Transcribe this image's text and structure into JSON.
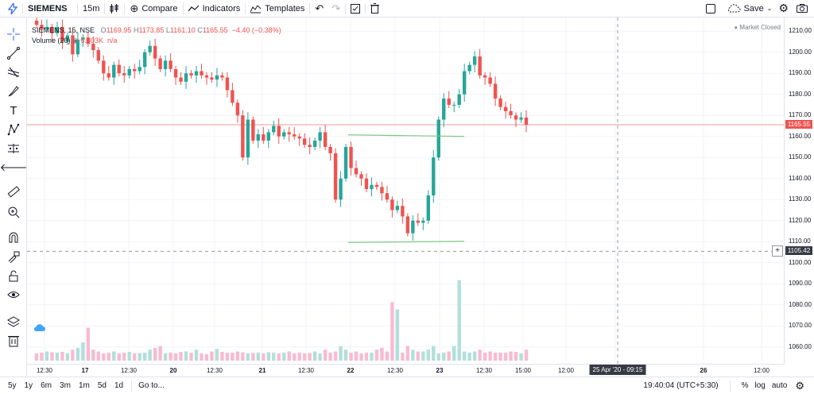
{
  "toolbar": {
    "symbol": "SIEMENS",
    "interval": "15m",
    "compare_label": "Compare",
    "indicators_label": "Indicators",
    "templates_label": "Templates",
    "save_label": "Save"
  },
  "legend": {
    "symbol_line": "SIEMENS, 15, NSE",
    "open_label": "O",
    "open": "1169.95",
    "high_label": "H",
    "high": "1173.85",
    "low_label": "L",
    "low": "1161.10",
    "close_label": "C",
    "close": "1165.55",
    "change": "−4.40 (−0.38%)",
    "volume_label": "Volume (20)",
    "volume_value": "6.803K",
    "volume_ma": "n/a"
  },
  "market_status": "Market Closed",
  "price_axis": {
    "ticks": [
      "1210.00",
      "1200.00",
      "1190.00",
      "1180.00",
      "1170.00",
      "1160.00",
      "1150.00",
      "1140.00",
      "1130.00",
      "1120.00",
      "1110.00",
      "1100.00",
      "1090.00",
      "1080.00",
      "1070.00",
      "1060.00"
    ],
    "last_price": "1165.55",
    "crosshair_price": "1105.42"
  },
  "time_axis": {
    "ticks": [
      "12:30",
      "17",
      "12:30",
      "20",
      "12:30",
      "21",
      "12:30",
      "22",
      "12:30",
      "23",
      "12:30",
      "15:00",
      "12:00",
      "12:00",
      "26",
      "12:00"
    ],
    "crosshair_time": "25 Apr '20 - 09:15"
  },
  "bottom": {
    "ranges": [
      "5y",
      "1y",
      "6m",
      "3m",
      "1m",
      "5d",
      "1d"
    ],
    "goto_label": "Go to...",
    "clock": "19:40:04 (UTC+5:30)",
    "percent_label": "%",
    "log_label": "log",
    "auto_label": "auto"
  },
  "colors": {
    "up": "#26a69a",
    "down": "#ef5350",
    "accent": "#2962ff"
  },
  "chart_data": {
    "type": "candlestick",
    "closes": [
      1213,
      1211,
      1212,
      1209,
      1212,
      1205,
      1208,
      1199,
      1206,
      1207,
      1204,
      1201,
      1196,
      1190,
      1188,
      1194,
      1190,
      1189,
      1192,
      1191,
      1193,
      1200,
      1203,
      1197,
      1192,
      1196,
      1192,
      1188,
      1186,
      1190,
      1189,
      1191,
      1189,
      1188,
      1187,
      1189,
      1188,
      1182,
      1176,
      1170,
      1150,
      1168,
      1158,
      1161,
      1158,
      1162,
      1165,
      1160,
      1162,
      1161,
      1160,
      1159,
      1156,
      1155,
      1158,
      1162,
      1155,
      1152,
      1130,
      1140,
      1155,
      1145,
      1142,
      1140,
      1135,
      1137,
      1136,
      1133,
      1130,
      1125,
      1127,
      1122,
      1114,
      1120,
      1119,
      1120,
      1132,
      1150,
      1168,
      1178,
      1175,
      1175,
      1180,
      1191,
      1194,
      1198,
      1189,
      1188,
      1185,
      1178,
      1174,
      1172,
      1170,
      1168,
      1169,
      1165.55
    ],
    "volumes": [
      2,
      2.2,
      2.5,
      2.3,
      2.2,
      2.4,
      2,
      3,
      3.5,
      5,
      9,
      3,
      2.5,
      2,
      2.2,
      2.5,
      2,
      2.2,
      2.4,
      2,
      2.1,
      2.2,
      3,
      3.5,
      4,
      2,
      2.2,
      2,
      2.4,
      2.5,
      2.2,
      3,
      2,
      1.8,
      2.5,
      3.2,
      2.4,
      2.2,
      2.2,
      2.5,
      2.3,
      2,
      2.1,
      2.2,
      2,
      2.3,
      2.2,
      2,
      2.2,
      2.5,
      2,
      2.2,
      2,
      2.1,
      2.5,
      2,
      3,
      2.2,
      2.5,
      4,
      3,
      2.2,
      2.5,
      2,
      2.2,
      2.2,
      3,
      3.5,
      2.5,
      16,
      14,
      2.2,
      4,
      3,
      2.5,
      2.5,
      3,
      4,
      2,
      2.2,
      2.5,
      4,
      22,
      2.5,
      2.2,
      2.5,
      3,
      2.2,
      2.5,
      2.2,
      2.2,
      2.2,
      2.5,
      2.4,
      2,
      3
    ],
    "ylim": [
      1055,
      1215
    ],
    "support_line": 1110,
    "resistance_line": 1160
  }
}
